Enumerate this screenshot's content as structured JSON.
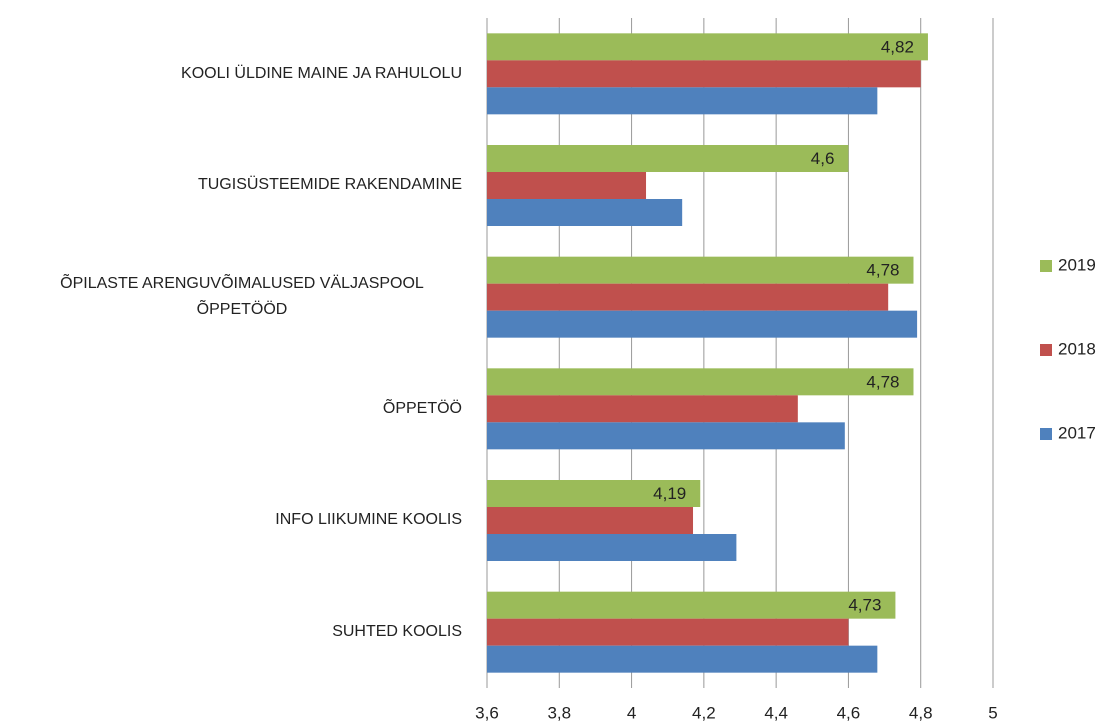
{
  "chart_data": {
    "type": "bar",
    "orientation": "horizontal",
    "categories": [
      "KOOLI ÜLDINE MAINE JA RAHULOLU",
      "TUGISÜSTEEMIDE RAKENDAMINE",
      "ÕPILASTE ARENGUVÕIMALUSED VÄLJASPOOL ÕPPETÖÖD",
      "ÕPPETÖÖ",
      "INFO LIIKUMINE KOOLIS",
      "SUHTED KOOLIS"
    ],
    "series": [
      {
        "name": "2019",
        "color": "#9bbb59",
        "values": [
          4.82,
          4.6,
          4.78,
          4.78,
          4.19,
          4.73
        ],
        "value_labels": [
          "4,82",
          "4,6",
          "4,78",
          "4,78",
          "4,19",
          "4,73"
        ]
      },
      {
        "name": "2018",
        "color": "#c0504d",
        "values": [
          4.8,
          4.04,
          4.71,
          4.46,
          4.17,
          4.6
        ]
      },
      {
        "name": "2017",
        "color": "#4f81bd",
        "values": [
          4.68,
          4.14,
          4.79,
          4.59,
          4.29,
          4.68
        ]
      }
    ],
    "xlim": [
      3.6,
      5
    ],
    "xticks": [
      {
        "value": 3.6,
        "label": "3,6"
      },
      {
        "value": 3.8,
        "label": "3,8"
      },
      4,
      {
        "value": 4.2,
        "label": "4,2"
      },
      {
        "value": 4.4,
        "label": "4,4"
      },
      {
        "value": 4.6,
        "label": "4,6"
      },
      {
        "value": 4.8,
        "label": "4,8"
      },
      5
    ],
    "grid": true,
    "legend": "right"
  }
}
